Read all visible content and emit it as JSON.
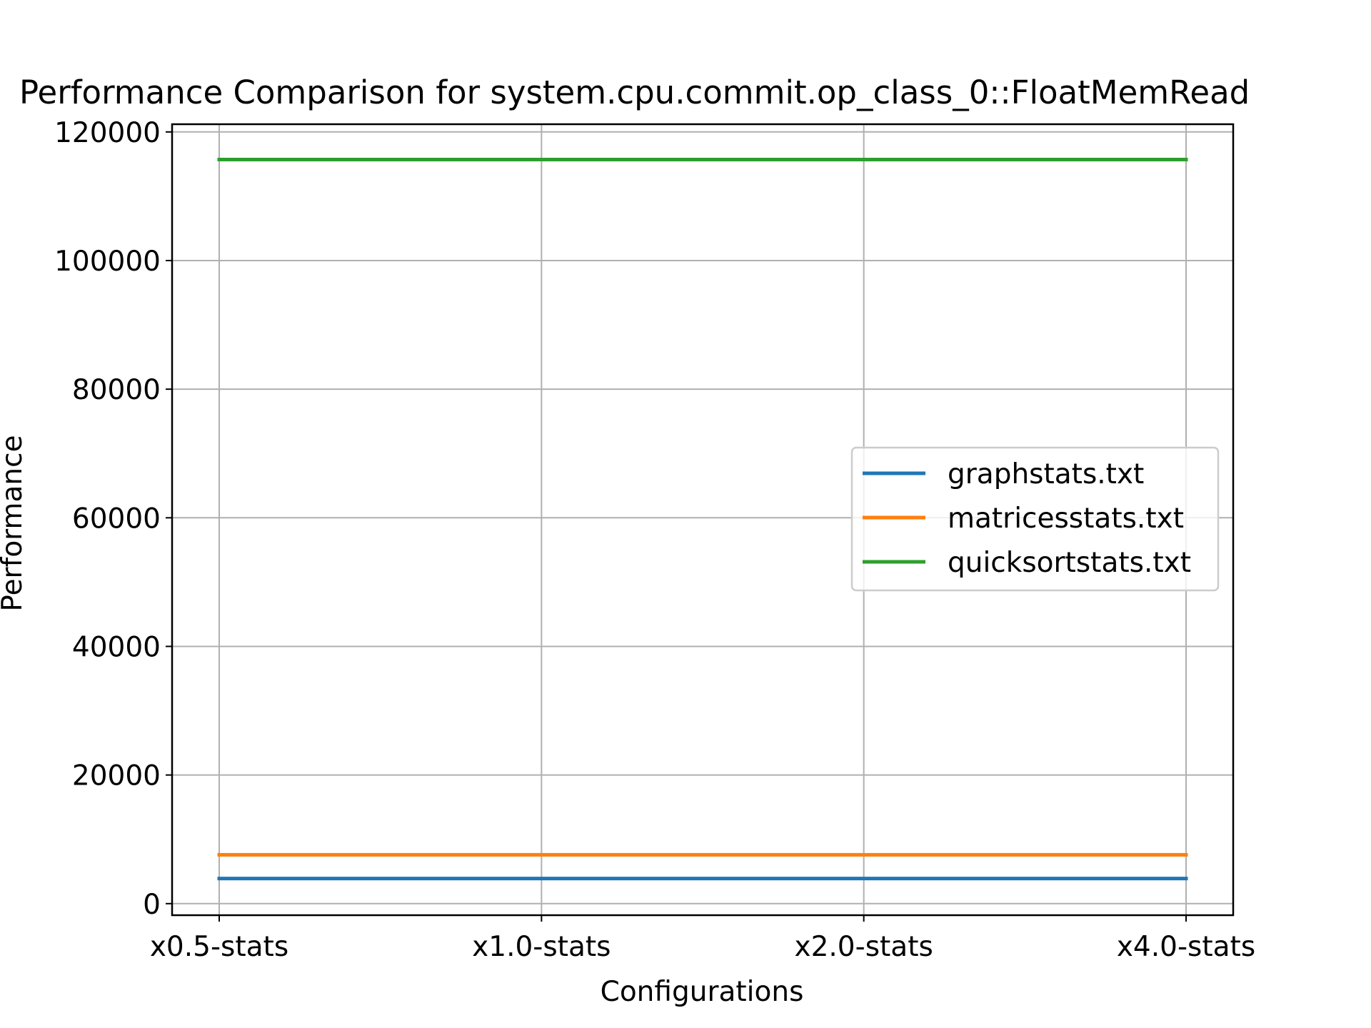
{
  "chart_data": {
    "type": "line",
    "title": "Performance Comparison for system.cpu.commit.op_class_0::FloatMemRead",
    "xlabel": "Configurations",
    "ylabel": "Performance",
    "categories": [
      "x0.5-stats",
      "x1.0-stats",
      "x2.0-stats",
      "x4.0-stats"
    ],
    "ylim": [
      -1800,
      121200
    ],
    "yticks": [
      0,
      20000,
      40000,
      60000,
      80000,
      100000,
      120000
    ],
    "ytick_labels": [
      "0",
      "20000",
      "40000",
      "60000",
      "80000",
      "100000",
      "120000"
    ],
    "grid": true,
    "legend_position": "center-right",
    "series": [
      {
        "name": "graphstats.txt",
        "color": "#1f77b4",
        "values": [
          3900,
          3900,
          3900,
          3900
        ]
      },
      {
        "name": "matricesstats.txt",
        "color": "#ff7f0e",
        "values": [
          7600,
          7600,
          7600,
          7600
        ]
      },
      {
        "name": "quicksortstats.txt",
        "color": "#2ca02c",
        "values": [
          115700,
          115700,
          115700,
          115700
        ]
      }
    ]
  }
}
